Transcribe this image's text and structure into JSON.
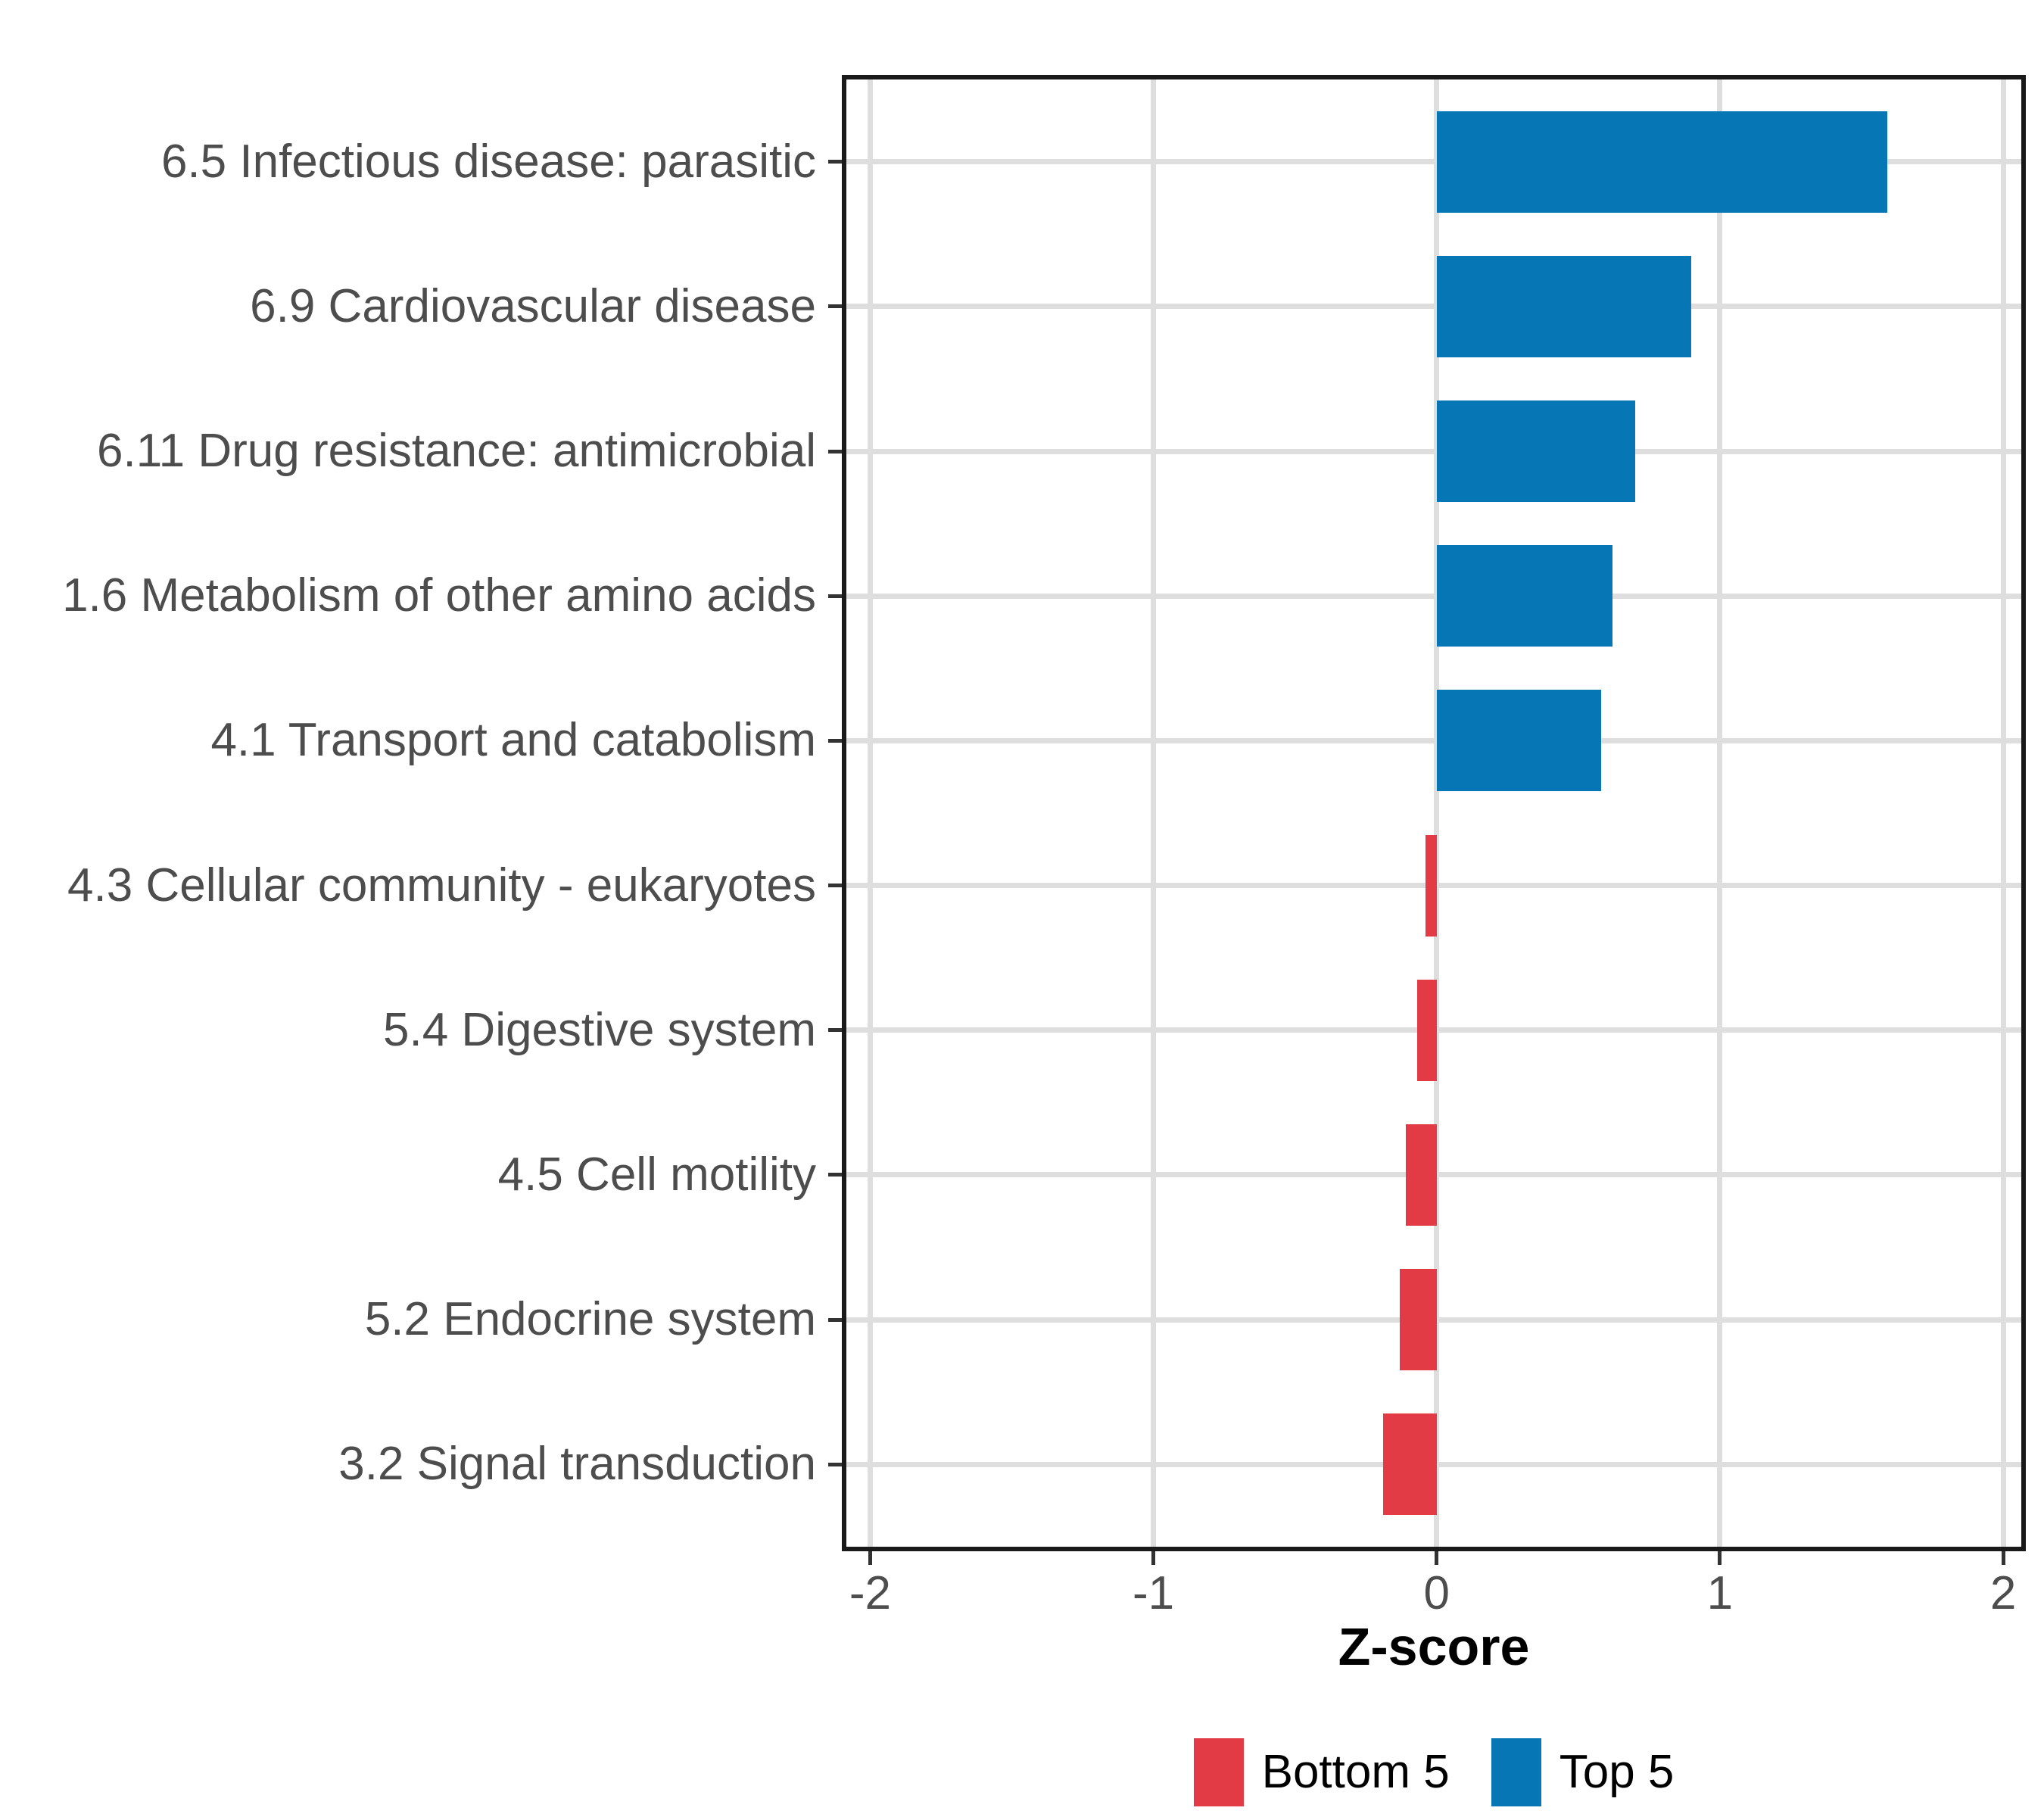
{
  "chart_data": {
    "type": "bar",
    "orientation": "horizontal",
    "title": "",
    "xlabel": "Z-score",
    "ylabel": "",
    "categories": [
      "6.5 Infectious disease: parasitic",
      "6.9 Cardiovascular disease",
      "6.11 Drug resistance: antimicrobial",
      "1.6 Metabolism of other amino acids",
      "4.1 Transport and catabolism",
      "4.3 Cellular community - eukaryotes",
      "5.4 Digestive system",
      "4.5 Cell motility",
      "5.2 Endocrine system",
      "3.2 Signal transduction"
    ],
    "values": [
      1.59,
      0.9,
      0.7,
      0.62,
      0.58,
      -0.04,
      -0.07,
      -0.11,
      -0.13,
      -0.19
    ],
    "x_ticks": [
      -2,
      -1,
      0,
      1,
      2
    ],
    "x_tick_labels": [
      "-2",
      "-1",
      "0",
      "1",
      "2"
    ],
    "xlim": [
      -2.1,
      2.08
    ],
    "grid": "major",
    "legend_position": "bottom",
    "legend": [
      {
        "label": "Bottom 5",
        "color": "#e23b46"
      },
      {
        "label": "Top 5",
        "color": "#0676b4"
      }
    ],
    "colors": {
      "positive_bar": "#0676b4",
      "negative_bar": "#e23b46",
      "gridline": "#dedede",
      "panel_border": "#1a1a1a",
      "axis_text": "#4d4d4d",
      "axis_title": "#000000"
    }
  }
}
